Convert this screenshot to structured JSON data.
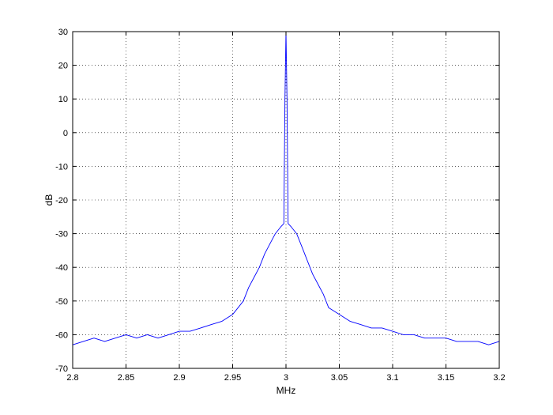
{
  "chart_data": {
    "type": "line",
    "xlabel": "MHz",
    "ylabel": "dB",
    "xlim": [
      2.8,
      3.2
    ],
    "ylim": [
      -70,
      30
    ],
    "x_ticks": [
      2.8,
      2.85,
      2.9,
      2.95,
      3,
      3.05,
      3.1,
      3.15,
      3.2
    ],
    "x_tick_labels": [
      "2.8",
      "2.85",
      "2.9",
      "2.95",
      "3",
      "3.05",
      "3.1",
      "3.15",
      "3.2"
    ],
    "y_ticks": [
      -70,
      -60,
      -50,
      -40,
      -30,
      -20,
      -10,
      0,
      10,
      20,
      30
    ],
    "y_tick_labels": [
      "-70",
      "-60",
      "-50",
      "-40",
      "-30",
      "-20",
      "-10",
      "0",
      "10",
      "20",
      "30"
    ],
    "grid": true,
    "series": [
      {
        "color": "#0000ff",
        "x": [
          2.8,
          2.81,
          2.82,
          2.83,
          2.84,
          2.85,
          2.86,
          2.87,
          2.88,
          2.89,
          2.9,
          2.91,
          2.92,
          2.93,
          2.94,
          2.95,
          2.955,
          2.96,
          2.965,
          2.97,
          2.975,
          2.98,
          2.985,
          2.99,
          2.995,
          2.998,
          2.999,
          3.0,
          3.001,
          3.002,
          3.005,
          3.01,
          3.015,
          3.02,
          3.025,
          3.03,
          3.035,
          3.04,
          3.05,
          3.06,
          3.07,
          3.08,
          3.09,
          3.1,
          3.11,
          3.12,
          3.13,
          3.14,
          3.15,
          3.16,
          3.17,
          3.18,
          3.19,
          3.2
        ],
        "y": [
          -63,
          -62,
          -61,
          -62,
          -61,
          -60,
          -61,
          -60,
          -61,
          -60,
          -59,
          -59,
          -58,
          -57,
          -56,
          -54,
          -52,
          -50,
          -46,
          -43,
          -40,
          -36,
          -33,
          -30,
          -28,
          -27,
          10,
          30,
          10,
          -27,
          -28,
          -30,
          -34,
          -38,
          -42,
          -45,
          -48,
          -52,
          -54,
          -56,
          -57,
          -58,
          -58,
          -59,
          -60,
          -60,
          -61,
          -61,
          -61,
          -62,
          -62,
          -62,
          -63,
          -62
        ]
      }
    ]
  }
}
